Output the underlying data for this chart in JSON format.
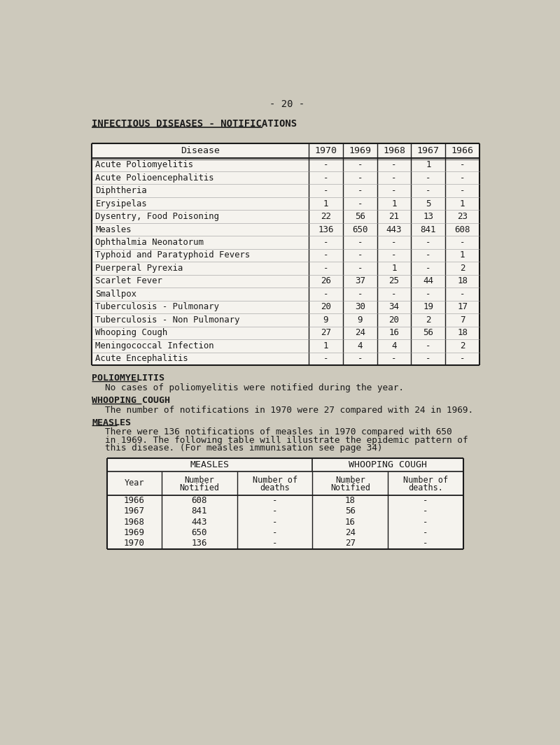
{
  "page_number": "- 20 -",
  "main_title": "INFECTIOUS DISEASES - NOTIFICATIONS",
  "background_color": "#cdc9bc",
  "text_color": "#1a1a1a",
  "table1": {
    "columns": [
      "Disease",
      "1970",
      "1969",
      "1968",
      "1967",
      "1966"
    ],
    "rows": [
      [
        "Acute Poliomyelitis",
        "-",
        "-",
        "-",
        "1",
        "-"
      ],
      [
        "Acute Polioencephalitis",
        "-",
        "-",
        "-",
        "-",
        "-"
      ],
      [
        "Diphtheria",
        "-",
        "-",
        "-",
        "-",
        "-"
      ],
      [
        "Erysipelas",
        "1",
        "-",
        "1",
        "5",
        "1"
      ],
      [
        "Dysentry, Food Poisoning",
        "22",
        "56",
        "21",
        "13",
        "23"
      ],
      [
        "Measles",
        "136",
        "650",
        "443",
        "841",
        "608"
      ],
      [
        "Ophthalmia Neonatorum",
        "-",
        "-",
        "-",
        "-",
        "-"
      ],
      [
        "Typhoid and Paratyphoid Fevers",
        "-",
        "-",
        "-",
        "-",
        "1"
      ],
      [
        "Puerperal Pyrexia",
        "-",
        "-",
        "1",
        "-",
        "2"
      ],
      [
        "Scarlet Fever",
        "26",
        "37",
        "25",
        "44",
        "18"
      ],
      [
        "Smallpox",
        "-",
        "-",
        "-",
        "-",
        "-"
      ],
      [
        "Tuberculosis - Pulmonary",
        "20",
        "30",
        "34",
        "19",
        "17"
      ],
      [
        "Tuberculosis - Non Pulmonary",
        "9",
        "9",
        "20",
        "2",
        "7"
      ],
      [
        "Whooping Cough",
        "27",
        "24",
        "16",
        "56",
        "18"
      ],
      [
        "Meningococcal Infection",
        "1",
        "4",
        "4",
        "-",
        "2"
      ],
      [
        "Acute Encephalitis",
        "-",
        "-",
        "-",
        "-",
        "-"
      ]
    ]
  },
  "sections": [
    {
      "heading": "POLIOMYELITIS",
      "body": [
        "No cases of poliomyelitis were notified during the year."
      ]
    },
    {
      "heading": "WHOOPING COUGH",
      "body": [
        "The number of notifications in 1970 were 27 compared with 24 in 1969."
      ]
    },
    {
      "heading": "MEASLES",
      "body": [
        "There were 136 notifications of measles in 1970 compared with 650",
        "in 1969. The following table will illustrate the epidemic pattern of",
        "this disease. (For measles immunisation see page 34)"
      ]
    }
  ],
  "table2": {
    "col_groups": [
      "MEASLES",
      "WHOOPING COUGH"
    ],
    "col_group_spans": [
      3,
      2
    ],
    "col_headers": [
      "Year",
      "Number\nNotified",
      "Number of\ndeaths",
      "Number\nNotified",
      "Number of\ndeaths."
    ],
    "rows": [
      [
        "1966",
        "608",
        "-",
        "18",
        "-"
      ],
      [
        "1967",
        "841",
        "-",
        "56",
        "-"
      ],
      [
        "1968",
        "443",
        "-",
        "16",
        "-"
      ],
      [
        "1969",
        "650",
        "-",
        "24",
        "-"
      ],
      [
        "1970",
        "136",
        "-",
        "27",
        "-"
      ]
    ]
  }
}
